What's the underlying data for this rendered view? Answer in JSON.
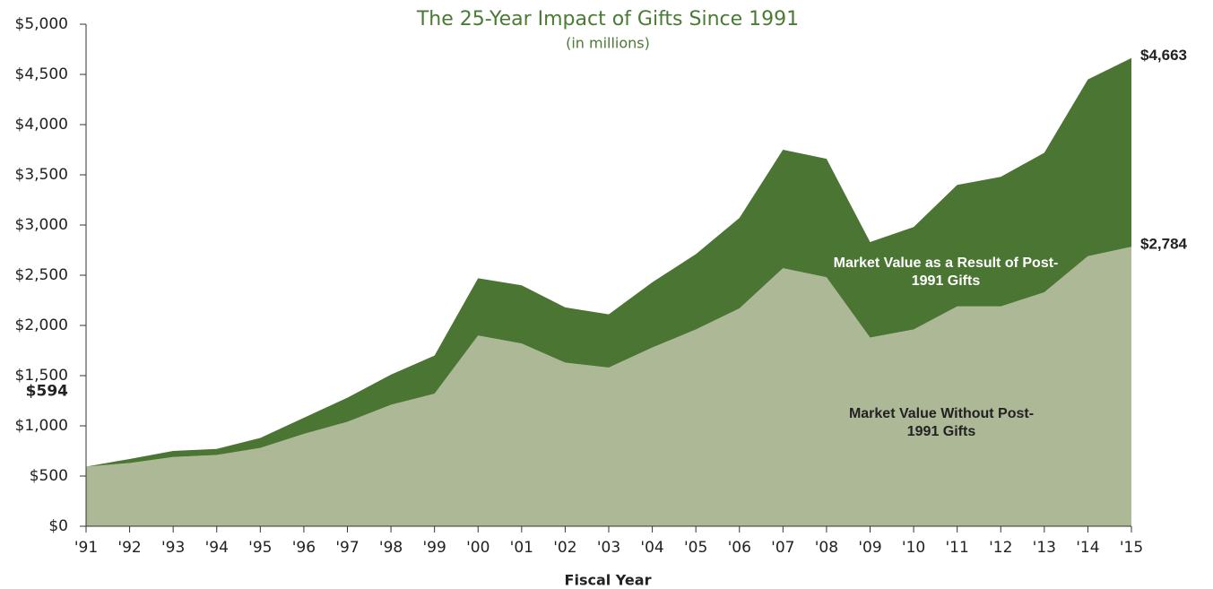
{
  "chart_data": {
    "type": "stacked_area",
    "title": "The 25-Year Impact of Gifts Since 1991",
    "subtitle": "(in millions)",
    "x_label": "Fiscal Year",
    "categories": [
      "'91",
      "'92",
      "'93",
      "'94",
      "'95",
      "'96",
      "'97",
      "'98",
      "'99",
      "'00",
      "'01",
      "'02",
      "'03",
      "'04",
      "'05",
      "'06",
      "'07",
      "'08",
      "'09",
      "'10",
      "'11",
      "'12",
      "'13",
      "'14",
      "'15"
    ],
    "series": [
      {
        "name": "Market Value Without Post-1991 Gifts",
        "color": "#adb897",
        "values": [
          594,
          630,
          690,
          710,
          780,
          920,
          1040,
          1210,
          1320,
          1900,
          1820,
          1630,
          1580,
          1780,
          1960,
          2170,
          2570,
          2480,
          1880,
          1960,
          2190,
          2190,
          2330,
          2690,
          2784
        ],
        "value_labels": [
          "$594",
          null,
          null,
          null,
          null,
          null,
          null,
          null,
          null,
          null,
          null,
          null,
          null,
          null,
          null,
          null,
          null,
          null,
          null,
          null,
          null,
          null,
          null,
          null,
          "$2,784"
        ]
      },
      {
        "name": "Market Value as a Result of Post-1991 Gifts",
        "color": "#4a7533",
        "values": [
          0,
          40,
          60,
          60,
          100,
          160,
          240,
          300,
          380,
          570,
          580,
          550,
          530,
          650,
          750,
          900,
          1180,
          1180,
          950,
          1020,
          1210,
          1290,
          1390,
          1760,
          1879
        ]
      }
    ],
    "annotations": [
      {
        "text": "$4,663",
        "value": 4663
      }
    ],
    "ylim": [
      0,
      5000
    ],
    "yticks": [
      {
        "value": 0,
        "label": "$0"
      },
      {
        "value": 500,
        "label": "$500"
      },
      {
        "value": 1000,
        "label": "$1,000"
      },
      {
        "value": 1500,
        "label": "$1,500"
      },
      {
        "value": 2000,
        "label": "$2,000"
      },
      {
        "value": 2500,
        "label": "$2,500"
      },
      {
        "value": 3000,
        "label": "$3,000"
      },
      {
        "value": 3500,
        "label": "$3,500"
      },
      {
        "value": 4000,
        "label": "$4,000"
      },
      {
        "value": 4500,
        "label": "$4,500"
      },
      {
        "value": 5000,
        "label": "$5,000"
      }
    ],
    "title_color": "#4a7a34"
  }
}
